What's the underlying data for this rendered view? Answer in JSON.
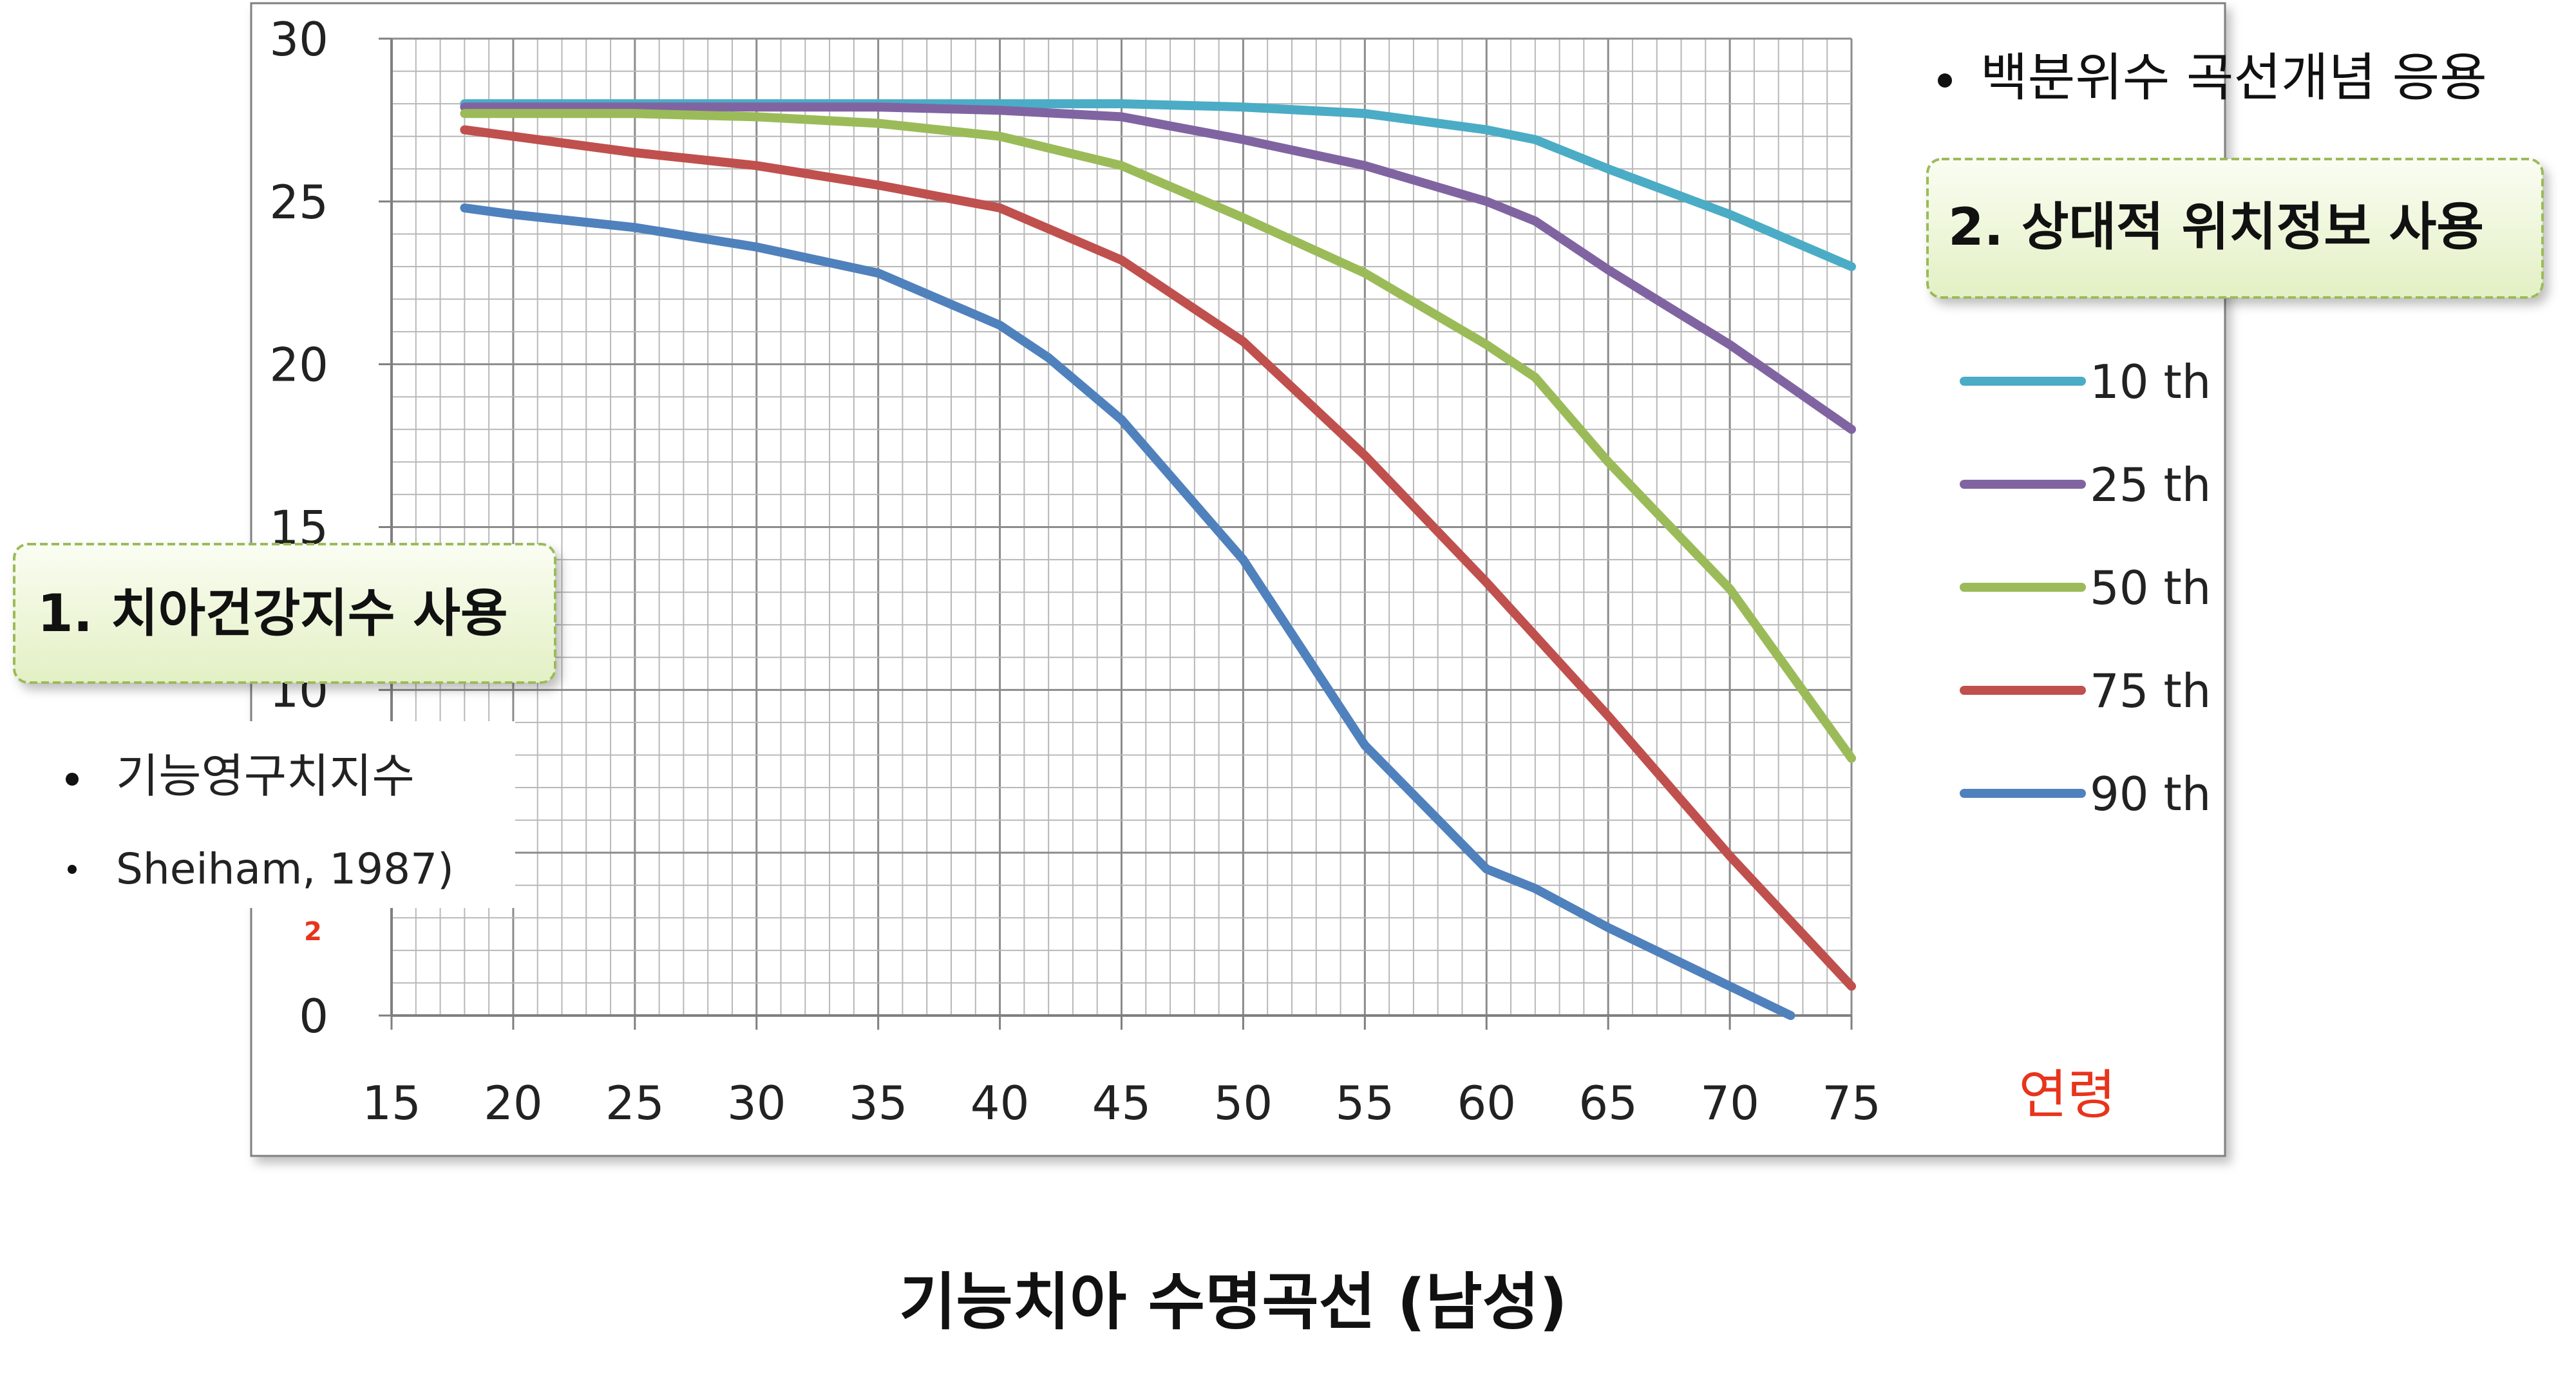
{
  "chart_data": {
    "type": "line",
    "title": "기능치아 수명곡선 (남성)",
    "xlabel": "연령",
    "ylabel": "",
    "xlim": [
      15,
      75
    ],
    "ylim": [
      0,
      30
    ],
    "x_ticks": [
      15,
      20,
      25,
      30,
      35,
      40,
      45,
      50,
      55,
      60,
      65,
      70,
      75
    ],
    "y_ticks": [
      0,
      5,
      10,
      15,
      20,
      25,
      30
    ],
    "y_tick_labels": [
      "0",
      "",
      "10",
      "15",
      "20",
      "25",
      "30"
    ],
    "grid": true,
    "legend_position": "right",
    "series": [
      {
        "name": "10 th",
        "color": "#4BACC6",
        "x": [
          18,
          20,
          25,
          30,
          35,
          40,
          42.5,
          45,
          50,
          55,
          60,
          62,
          65,
          70,
          75
        ],
        "y": [
          28,
          28,
          28,
          28,
          28,
          28,
          28,
          28,
          27.9,
          27.7,
          27.2,
          26.9,
          26,
          24.6,
          23
        ]
      },
      {
        "name": "25 th",
        "color": "#8064A2",
        "x": [
          18,
          20,
          25,
          30,
          35,
          40,
          45,
          50,
          55,
          60,
          62,
          65,
          70,
          75
        ],
        "y": [
          27.9,
          27.9,
          27.9,
          27.9,
          27.9,
          27.8,
          27.6,
          26.9,
          26.1,
          25,
          24.4,
          22.9,
          20.6,
          18
        ]
      },
      {
        "name": "50 th",
        "color": "#9BBB59",
        "x": [
          18,
          20,
          25,
          30,
          35,
          40,
          45,
          50,
          55,
          60,
          62,
          65,
          70,
          75
        ],
        "y": [
          27.7,
          27.7,
          27.7,
          27.6,
          27.4,
          27,
          26.1,
          24.5,
          22.8,
          20.6,
          19.6,
          17,
          13.1,
          7.9
        ]
      },
      {
        "name": "75 th",
        "color": "#C0504D",
        "x": [
          18,
          20,
          25,
          30,
          35,
          40,
          45,
          50,
          55,
          60,
          65,
          70,
          75
        ],
        "y": [
          27.2,
          27,
          26.5,
          26.1,
          25.5,
          24.8,
          23.2,
          20.7,
          17.2,
          13.3,
          9.2,
          4.9,
          0.9
        ]
      },
      {
        "name": "90 th",
        "color": "#4F81BD",
        "x": [
          18,
          20,
          25,
          30,
          35,
          40,
          42,
          45,
          50,
          55,
          60,
          62,
          65,
          70,
          72.5
        ],
        "y": [
          24.8,
          24.6,
          24.2,
          23.6,
          22.8,
          21.2,
          20.2,
          18.3,
          14,
          8.3,
          4.5,
          3.9,
          2.7,
          0.9,
          0
        ]
      }
    ]
  },
  "annotations": {
    "bullet_top": "백분위수 곡선개념 응용",
    "box_right": "2. 상대적 위치정보 사용",
    "box_left": "1. 치아건강지수 사용",
    "bullet_left_1": "기능영구치지수",
    "bullet_left_2": "Sheiham, 1987)",
    "stray_mark": "2"
  },
  "colors": {
    "axis_label_red": "#E8341C",
    "callout_fill": "#EEF6D6",
    "callout_border": "#9BBB59",
    "grid": "#A6A6A6"
  }
}
